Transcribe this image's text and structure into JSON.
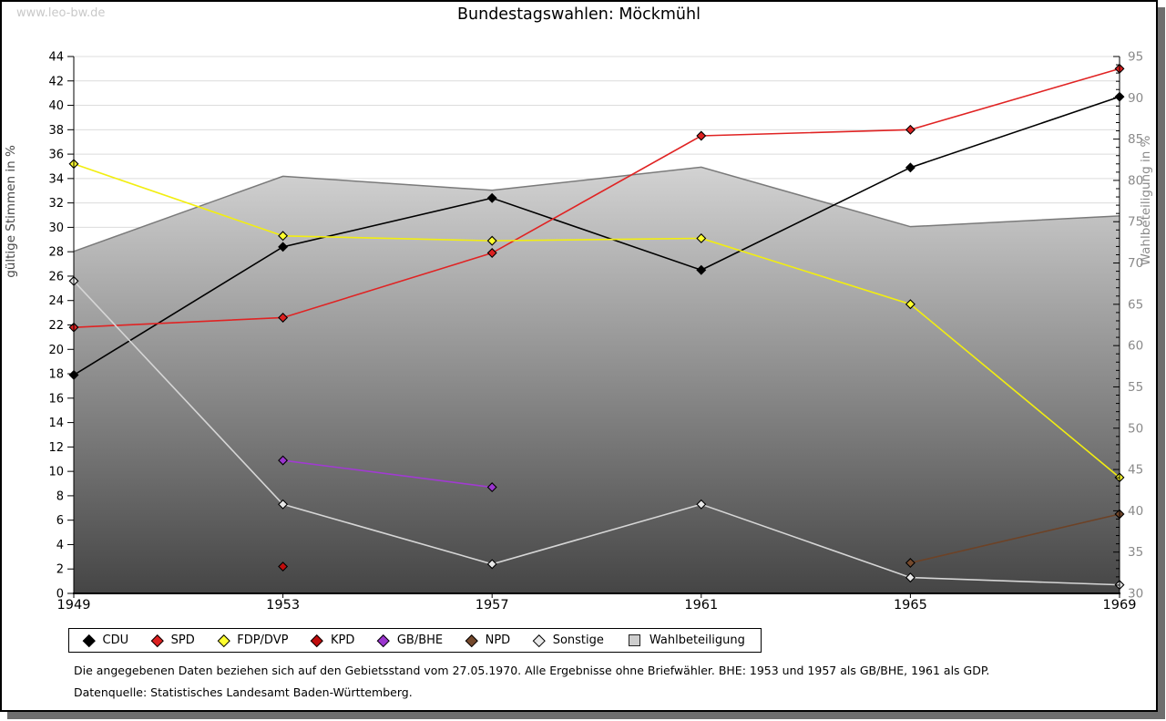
{
  "watermark": "www.leo-bw.de",
  "title": "Bundestagswahlen: Möckmühl",
  "chart_data": {
    "type": "line",
    "title": "Bundestagswahlen: Möckmühl",
    "x_years": [
      1949,
      1953,
      1957,
      1961,
      1965,
      1969
    ],
    "left_axis": {
      "label": "gültige Stimmen in %",
      "min": 0,
      "max": 44,
      "tick_step": 2,
      "ticks": [
        0,
        2,
        4,
        6,
        8,
        10,
        12,
        14,
        16,
        18,
        20,
        22,
        24,
        26,
        28,
        30,
        32,
        34,
        36,
        38,
        40,
        42,
        44
      ]
    },
    "right_axis": {
      "label": "Wahlbeteiligung in %",
      "min": 30,
      "max": 95,
      "tick_step": 5,
      "ticks": [
        30,
        35,
        40,
        45,
        50,
        55,
        60,
        65,
        70,
        75,
        80,
        85,
        90,
        95
      ]
    },
    "grid": {
      "horizontal": true,
      "vertical": false,
      "color": "#dcdcdc",
      "step_left_units": 2
    },
    "legend_position": "bottom",
    "series": [
      {
        "name": "CDU",
        "axis": "left",
        "line_color": "#000000",
        "marker_fill": "#000000",
        "values": [
          17.9,
          28.4,
          32.4,
          26.5,
          34.9,
          40.7
        ]
      },
      {
        "name": "SPD",
        "axis": "left",
        "line_color": "#e02323",
        "marker_fill": "#dd2020",
        "values": [
          21.8,
          22.6,
          27.9,
          37.5,
          38.0,
          43.0
        ]
      },
      {
        "name": "FDP/DVP",
        "axis": "left",
        "line_color": "#f2ee10",
        "marker_fill": "#ffff2e",
        "values": [
          35.2,
          29.3,
          28.9,
          29.1,
          23.7,
          9.5
        ]
      },
      {
        "name": "KPD",
        "axis": "left",
        "line_color": "#b00808",
        "marker_fill": "#c00c0c",
        "values": [
          null,
          2.2,
          null,
          null,
          null,
          null
        ]
      },
      {
        "name": "GB/BHE",
        "axis": "left",
        "line_color": "#a13bd1",
        "marker_fill": "#9b35cf",
        "values": [
          null,
          10.9,
          8.7,
          null,
          null,
          null
        ]
      },
      {
        "name": "NPD",
        "axis": "left",
        "line_color": "#6d4226",
        "marker_fill": "#75492c",
        "values": [
          null,
          null,
          null,
          null,
          2.5,
          6.5
        ]
      },
      {
        "name": "Sonstige",
        "axis": "left",
        "line_color": "#d6d6d6",
        "marker_fill": "#e8e8e8",
        "values": [
          25.6,
          7.3,
          2.4,
          7.3,
          1.3,
          0.7
        ]
      }
    ],
    "area_series": {
      "name": "Wahlbeteiligung",
      "axis": "right",
      "line_color": "#7a7a7a",
      "fill_top": "#f7f7f7",
      "fill_bottom": "#454545",
      "legend_swatch": "#cdcdcd",
      "values": [
        71.4,
        80.5,
        78.8,
        81.6,
        74.4,
        75.7
      ]
    }
  },
  "footnotes": [
    "Die angegebenen Daten beziehen sich auf den Gebietsstand vom 27.05.1970. Alle Ergebnisse ohne Briefwähler. BHE: 1953 und 1957 als GB/BHE, 1961 als GDP.",
    "Datenquelle: Statistisches Landesamt Baden-Württemberg."
  ]
}
